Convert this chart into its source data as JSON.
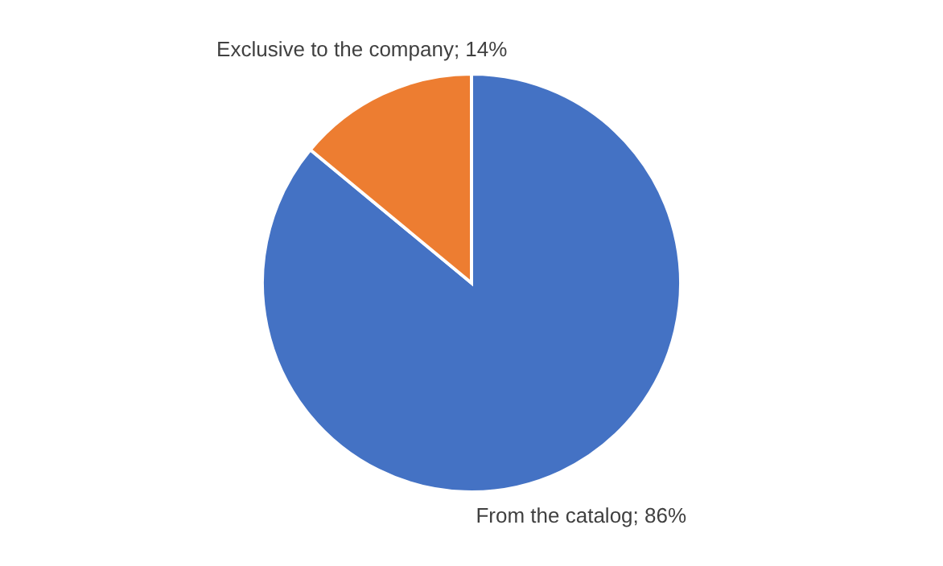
{
  "chart_data": {
    "type": "pie",
    "categories": [
      "From the catalog",
      "Exclusive to the company"
    ],
    "values": [
      86,
      14
    ],
    "colors": [
      "#4472c4",
      "#ed7d31"
    ],
    "value_labels": [
      "86%",
      "14%"
    ]
  }
}
